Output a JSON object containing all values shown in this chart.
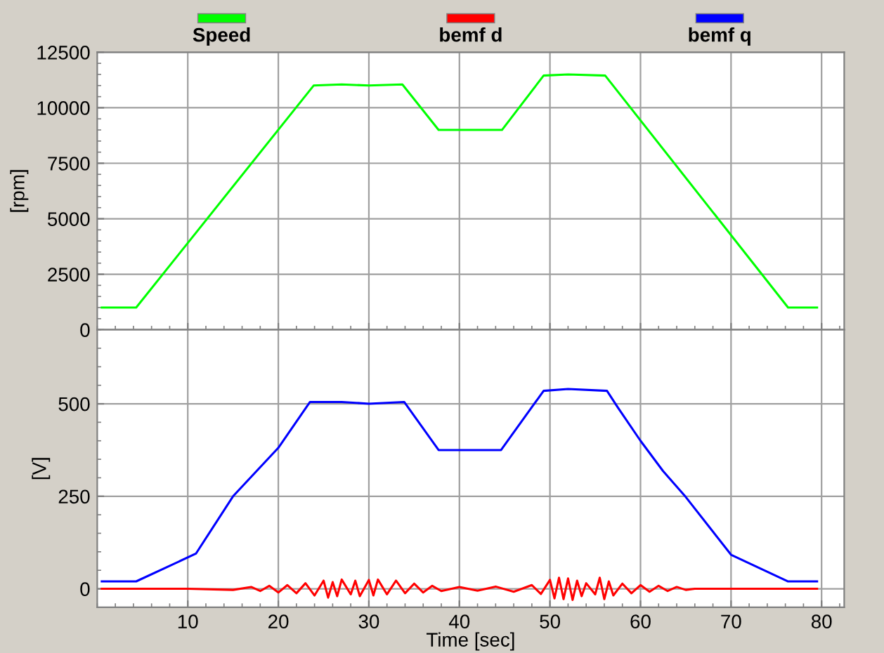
{
  "chart_data": [
    {
      "type": "line",
      "ylabel": "[rpm]",
      "xlim": [
        0,
        82.5
      ],
      "xticks": [
        10,
        20,
        30,
        40,
        50,
        60,
        70,
        80
      ],
      "ylim": [
        0,
        12500
      ],
      "yticks": [
        0,
        2500,
        5000,
        7500,
        10000,
        12500
      ],
      "tick_labels": "y",
      "grid": true,
      "legend": "top",
      "series": [
        {
          "name": "Speed",
          "color": "#00ff00",
          "x": [
            0.5,
            4.3,
            23.9,
            27,
            30,
            33.7,
            37.7,
            44.7,
            49.3,
            52,
            56.1,
            76.3,
            79.5
          ],
          "values": [
            1000,
            1000,
            11000,
            11050,
            11000,
            11050,
            9000,
            9000,
            11450,
            11500,
            11450,
            1000,
            1000
          ]
        }
      ]
    },
    {
      "type": "line",
      "ylabel": "[V]",
      "xlabel": "Time [sec]",
      "xlim": [
        0,
        82.5
      ],
      "xticks": [
        10,
        20,
        30,
        40,
        50,
        60,
        70,
        80
      ],
      "ylim": [
        -50,
        700
      ],
      "yticks": [
        0,
        250,
        500
      ],
      "grid": true,
      "legend": "top",
      "series": [
        {
          "name": "bemf d",
          "color": "#ff0000",
          "x": [
            0.5,
            10,
            15,
            17,
            18,
            19,
            20,
            21,
            22,
            23,
            24,
            25,
            25.5,
            26,
            26.5,
            27,
            28,
            28.5,
            29,
            30,
            30.5,
            31,
            32,
            33,
            34,
            35,
            36,
            37,
            38,
            40,
            42,
            44,
            46,
            48,
            49,
            50,
            50.5,
            51,
            51.5,
            52,
            52.5,
            53,
            53.5,
            54,
            55,
            55.5,
            56,
            56.5,
            57,
            58,
            59,
            60,
            61,
            62,
            63,
            64,
            65,
            66,
            79.5
          ],
          "values": [
            0,
            0,
            -3,
            5,
            -6,
            8,
            -10,
            10,
            -12,
            15,
            -18,
            22,
            -24,
            18,
            -20,
            25,
            -15,
            22,
            -20,
            24,
            -18,
            25,
            -15,
            22,
            -12,
            14,
            -10,
            8,
            -6,
            5,
            -5,
            6,
            -8,
            10,
            -14,
            24,
            -26,
            30,
            -28,
            28,
            -30,
            22,
            -20,
            15,
            -15,
            30,
            -28,
            20,
            -18,
            14,
            -12,
            10,
            -8,
            8,
            -6,
            5,
            -3,
            0,
            0
          ]
        },
        {
          "name": "bemf q",
          "color": "#0000ff",
          "x": [
            0.5,
            4.3,
            10.9,
            15,
            20,
            23.5,
            27,
            30,
            33.9,
            37.7,
            44.6,
            49.3,
            52,
            56.3,
            57.5,
            60,
            62.5,
            65,
            70,
            76.3,
            79.5
          ],
          "values": [
            20,
            20,
            95,
            250,
            381,
            505,
            505,
            500,
            505,
            375,
            375,
            535,
            540,
            535,
            490,
            400,
            318,
            248,
            92,
            20,
            20
          ]
        }
      ]
    }
  ]
}
